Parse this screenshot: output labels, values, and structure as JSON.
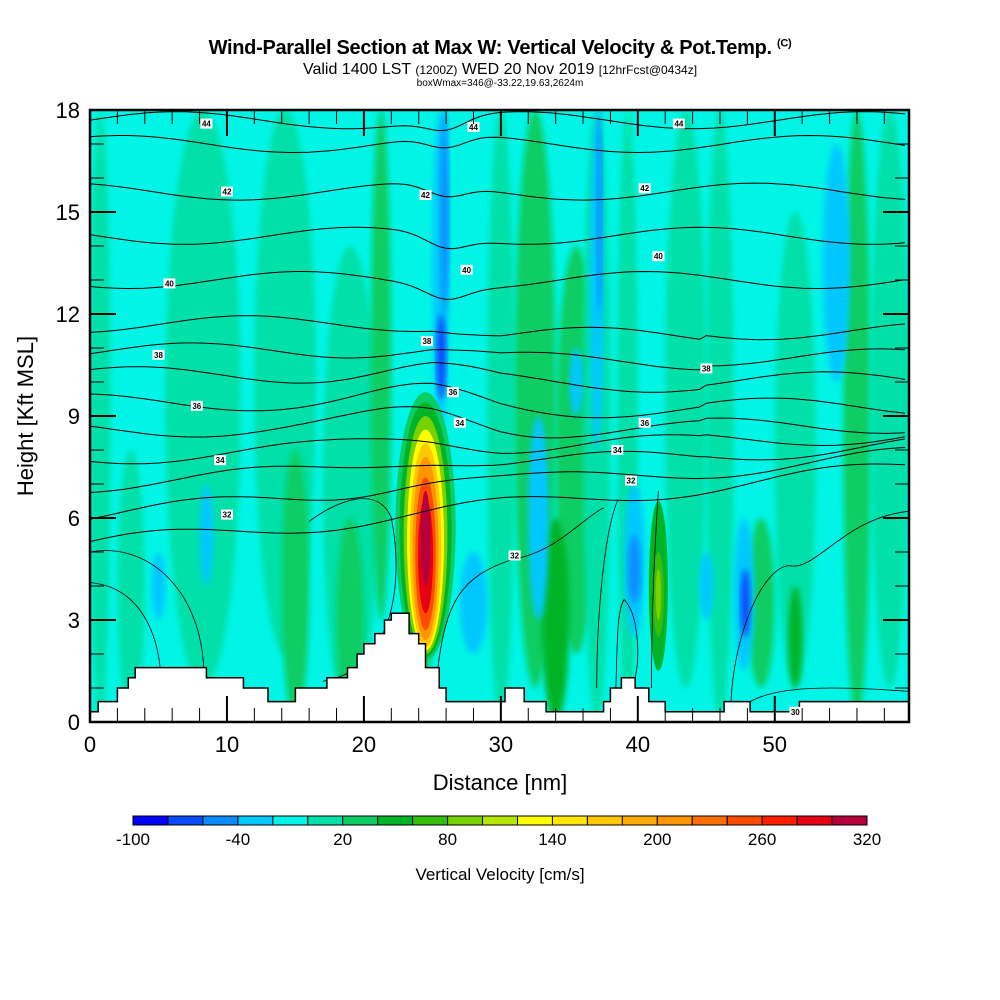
{
  "header": {
    "title": "Wind-Parallel Section at Max W: Vertical Velocity & Pot.Temp.",
    "copyright": "(C)",
    "valid_prefix": "Valid 1400 LST",
    "valid_utc": "(1200Z)",
    "valid_date": "WED 20 Nov 2019",
    "forecast": "[12hrFcst@0434z]",
    "box_info": "boxWmax=346@-33.22,19.63,2624m"
  },
  "chart_data": {
    "type": "heatmap",
    "title": "Wind-Parallel Section at Max W: Vertical Velocity & Pot.Temp.",
    "xlabel": "Distance [nm]",
    "ylabel": "Height [Kft MSL]",
    "xlim": [
      0,
      59.8
    ],
    "ylim": [
      0,
      18
    ],
    "x_ticks": [
      0,
      10,
      20,
      30,
      40,
      50
    ],
    "x_tick_labels": [
      "0",
      "10",
      "20",
      "30",
      "40",
      "50"
    ],
    "y_ticks": [
      0,
      3,
      6,
      9,
      12,
      15,
      18
    ],
    "y_tick_labels": [
      "0",
      "3",
      "6",
      "9",
      "12",
      "15",
      "18"
    ],
    "colorbar": {
      "title": "Vertical Velocity [cm/s]",
      "levels": [
        -100,
        -80,
        -60,
        -40,
        -20,
        0,
        20,
        40,
        60,
        80,
        100,
        120,
        140,
        160,
        180,
        200,
        220,
        240,
        260,
        280,
        300,
        320
      ],
      "tick_labels": [
        "-100",
        "-40",
        "20",
        "80",
        "140",
        "200",
        "260",
        "320"
      ],
      "tick_values": [
        -100,
        -40,
        20,
        80,
        140,
        200,
        260,
        320
      ],
      "colors": [
        "#0000ff",
        "#0a4bff",
        "#0a8cff",
        "#00c8ff",
        "#00f5e6",
        "#00e0a8",
        "#0acd64",
        "#00b428",
        "#35be0a",
        "#78d200",
        "#b4e600",
        "#ffff00",
        "#ffe600",
        "#ffc800",
        "#ffaa00",
        "#ff9600",
        "#ff6e00",
        "#ff4b00",
        "#ff1e00",
        "#e60014",
        "#b4003c"
      ]
    },
    "background_level_color": "#00f5e6",
    "velocity_features": [
      {
        "name": "updraft-core",
        "x": 24.5,
        "y_range": [
          2.0,
          9.6
        ],
        "max": 346
      },
      {
        "name": "downdraft-column",
        "x": 25.5,
        "y_range": [
          9.0,
          18
        ],
        "min": -60
      },
      {
        "name": "downdraft-41nm",
        "x": 39.5,
        "y_range": [
          2.5,
          6.0
        ],
        "min": -60
      },
      {
        "name": "downdraft-48nm",
        "x": 48.0,
        "y_range": [
          1.5,
          5.0
        ],
        "min": -60
      },
      {
        "name": "updraft-41nm",
        "x": 41.5,
        "y_range": [
          2.0,
          5.5
        ],
        "max": 100
      }
    ],
    "potential_temperature_contours": {
      "units": "C",
      "labels": [
        "30",
        "32",
        "34",
        "36",
        "38",
        "40",
        "42",
        "44"
      ],
      "labeled_values": [
        {
          "value": "44",
          "x": 8.5,
          "y": 17.6
        },
        {
          "value": "44",
          "x": 28.0,
          "y": 17.5
        },
        {
          "value": "44",
          "x": 43.0,
          "y": 17.6
        },
        {
          "value": "42",
          "x": 10.0,
          "y": 15.6
        },
        {
          "value": "42",
          "x": 24.5,
          "y": 15.5
        },
        {
          "value": "42",
          "x": 40.5,
          "y": 15.7
        },
        {
          "value": "40",
          "x": 5.8,
          "y": 12.9
        },
        {
          "value": "40",
          "x": 27.5,
          "y": 13.3
        },
        {
          "value": "40",
          "x": 41.5,
          "y": 13.7
        },
        {
          "value": "38",
          "x": 5.0,
          "y": 10.8
        },
        {
          "value": "38",
          "x": 24.6,
          "y": 11.2
        },
        {
          "value": "38",
          "x": 45.0,
          "y": 10.4
        },
        {
          "value": "36",
          "x": 7.8,
          "y": 9.3
        },
        {
          "value": "36",
          "x": 26.5,
          "y": 9.7
        },
        {
          "value": "36",
          "x": 40.5,
          "y": 8.8
        },
        {
          "value": "34",
          "x": 9.5,
          "y": 7.7
        },
        {
          "value": "34",
          "x": 27.0,
          "y": 8.8
        },
        {
          "value": "34",
          "x": 38.5,
          "y": 8.0
        },
        {
          "value": "32",
          "x": 10.0,
          "y": 6.1
        },
        {
          "value": "32",
          "x": 39.5,
          "y": 7.1
        },
        {
          "value": "32",
          "x": 31.0,
          "y": 4.9
        },
        {
          "value": "30",
          "x": 51.5,
          "y": 0.3
        }
      ]
    },
    "terrain_kft": {
      "x": [
        0,
        0.6,
        0.6,
        2.0,
        2.0,
        2.8,
        2.8,
        3.3,
        3.3,
        8.5,
        8.5,
        11.2,
        11.2,
        13.0,
        13.0,
        15.0,
        15.0,
        17.3,
        17.3,
        18.8,
        18.8,
        19.5,
        19.5,
        20.0,
        20.0,
        20.8,
        20.8,
        21.5,
        21.5,
        22.0,
        22.0,
        23.3,
        23.3,
        24.0,
        24.0,
        24.5,
        24.5,
        25.5,
        25.5,
        26.0,
        26.0,
        30.3,
        30.3,
        31.7,
        31.7,
        33.3,
        33.3,
        37.5,
        37.5,
        38.0,
        38.0,
        38.8,
        38.8,
        39.8,
        39.8,
        40.8,
        40.8,
        42.0,
        42.0,
        46.3,
        46.3,
        48.2,
        48.2,
        51.8,
        51.8,
        59.8
      ],
      "y": [
        0.3,
        0.3,
        0.6,
        0.6,
        1.0,
        1.0,
        1.3,
        1.3,
        1.6,
        1.6,
        1.3,
        1.3,
        1.0,
        1.0,
        0.6,
        0.6,
        1.0,
        1.0,
        1.3,
        1.3,
        1.6,
        1.6,
        2.0,
        2.0,
        2.3,
        2.3,
        2.6,
        2.6,
        3.0,
        3.0,
        3.2,
        3.2,
        2.6,
        2.6,
        2.3,
        2.3,
        1.6,
        1.6,
        1.0,
        1.0,
        0.6,
        0.6,
        1.0,
        1.0,
        0.6,
        0.6,
        0.3,
        0.3,
        0.6,
        0.6,
        1.0,
        1.0,
        1.3,
        1.3,
        1.0,
        1.0,
        0.6,
        0.6,
        0.3,
        0.3,
        0.6,
        0.6,
        0.3,
        0.3,
        0.6,
        0.6
      ]
    }
  }
}
